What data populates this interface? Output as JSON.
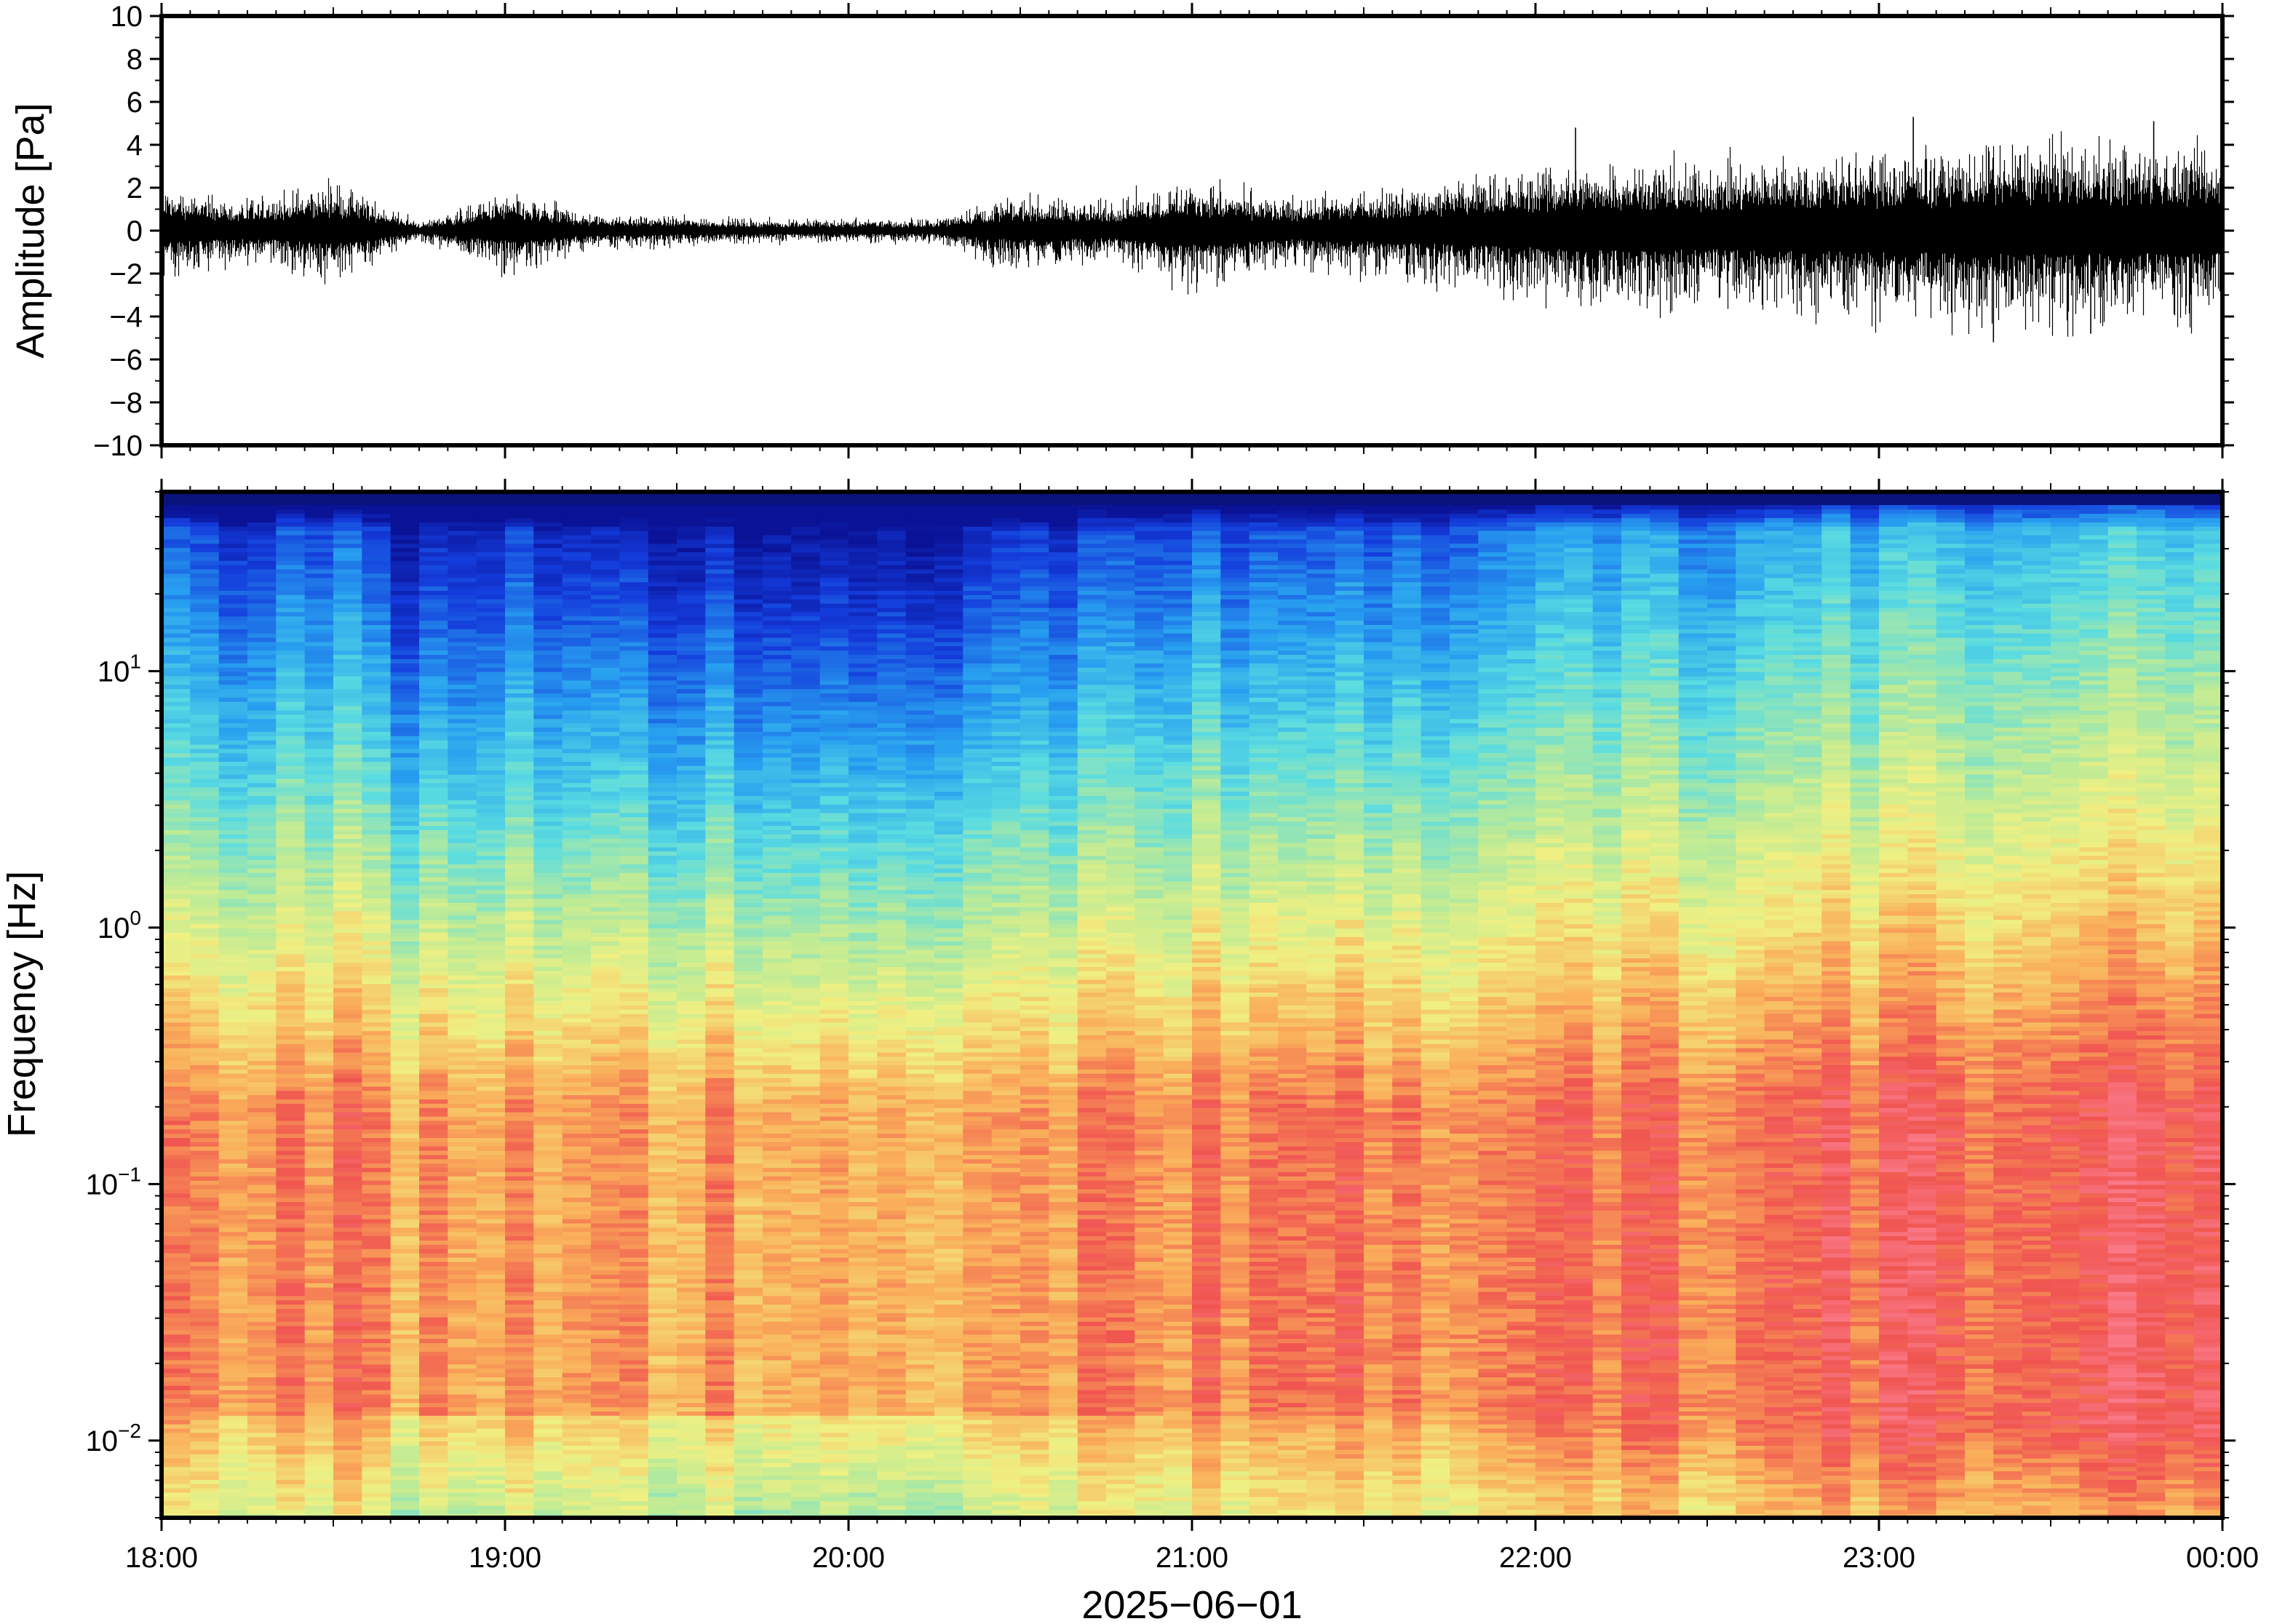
{
  "chart_data": [
    {
      "type": "line",
      "ylabel": "Amplitude [Pa]",
      "ylim": [
        -10,
        10
      ],
      "yticks": [
        10,
        8,
        6,
        4,
        2,
        0,
        -2,
        -4,
        -6,
        -8,
        -10
      ],
      "ytick_labels": [
        "10",
        "8",
        "6",
        "4",
        "2",
        "0",
        "−2",
        "−4",
        "−6",
        "−8",
        "−10"
      ],
      "x_range": [
        "18:00",
        "00:00"
      ],
      "envelope": {
        "time_hours": [
          18.0,
          18.25,
          18.5,
          18.75,
          19.0,
          19.25,
          19.5,
          19.75,
          20.0,
          20.25,
          20.4,
          20.5,
          20.75,
          21.0,
          21.25,
          21.5,
          21.75,
          22.0,
          22.25,
          22.5,
          22.75,
          23.0,
          23.25,
          23.5,
          23.75,
          24.0
        ],
        "amplitude_pa": [
          1.5,
          1.0,
          1.7,
          0.3,
          1.3,
          0.6,
          0.5,
          0.4,
          0.4,
          0.4,
          1.0,
          1.2,
          1.0,
          1.8,
          1.1,
          1.4,
          1.8,
          2.2,
          2.6,
          2.3,
          2.7,
          2.8,
          3.0,
          3.2,
          3.0,
          2.9
        ]
      },
      "peaks": [
        {
          "time": "22:07",
          "amplitude_pa": 4.8
        },
        {
          "time": "23:06",
          "amplitude_pa": 5.3
        },
        {
          "time": "23:20",
          "amplitude_pa": -5.2
        },
        {
          "time": "23:37",
          "amplitude_pa": -4.8
        },
        {
          "time": "23:48",
          "amplitude_pa": 5.1
        }
      ]
    },
    {
      "type": "heatmap",
      "ylabel": "Frequency [Hz]",
      "yscale": "log",
      "ylim_hz": [
        0.005,
        50
      ],
      "yticks_hz": [
        10,
        1,
        0.1,
        0.01
      ],
      "ytick_labels": [
        {
          "base": "10",
          "exp": "1"
        },
        {
          "base": "10",
          "exp": "0"
        },
        {
          "base": "10",
          "exp": "−1"
        },
        {
          "base": "10",
          "exp": "−2"
        }
      ],
      "xlabel": "2025−06−01",
      "xticks": [
        "18:00",
        "19:00",
        "20:00",
        "21:00",
        "22:00",
        "23:00",
        "00:00"
      ],
      "colormap": "jet",
      "notes_visible": "levels high (red) near 0.05–0.2 Hz, low (blue) above 10 Hz; quieter from 18:40 to 20:25",
      "colors": {
        "low": "#0a1fb0",
        "mid": "#e9f08a",
        "high": "#f2555e"
      }
    }
  ]
}
